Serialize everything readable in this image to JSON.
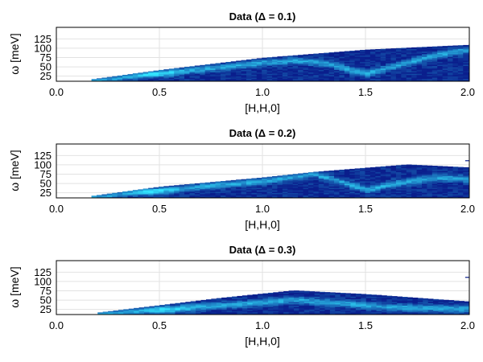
{
  "colors": {
    "background": "#ffffff",
    "grid": "#e2e2e2",
    "colormap_low": "#0a1e8c",
    "colormap_high": "#33e6ff"
  },
  "chart_data": [
    {
      "type": "heatmap",
      "title": "Data (Δ = 0.1)",
      "xlabel": "[H,H,0]",
      "ylabel": "ω [meV]",
      "xlim": [
        0.0,
        2.0
      ],
      "ylim": [
        0,
        145
      ],
      "xticks": [
        "0.0",
        "0.5",
        "1.0",
        "1.5",
        "2.0"
      ],
      "yticks": [
        "25",
        "50",
        "75",
        "100",
        "125"
      ],
      "grid": true,
      "upper_edge": [
        [
          0.17,
          5
        ],
        [
          0.5,
          30
        ],
        [
          1.0,
          63
        ],
        [
          1.5,
          85
        ],
        [
          2.0,
          98
        ]
      ],
      "bright_band": [
        [
          0.2,
          3
        ],
        [
          0.35,
          14
        ],
        [
          0.5,
          22
        ],
        [
          0.65,
          30
        ],
        [
          0.8,
          38
        ],
        [
          1.0,
          50
        ],
        [
          1.15,
          56
        ],
        [
          1.3,
          50
        ],
        [
          1.5,
          20
        ],
        [
          1.7,
          50
        ],
        [
          1.85,
          72
        ],
        [
          2.0,
          85
        ]
      ],
      "max_hotspot": [
        0.5,
        20
      ]
    },
    {
      "type": "heatmap",
      "title": "Data (Δ = 0.2)",
      "xlabel": "[H,H,0]",
      "ylabel": "ω [meV]",
      "xlim": [
        0.0,
        2.0
      ],
      "ylim": [
        0,
        145
      ],
      "xticks": [
        "0.0",
        "0.5",
        "1.0",
        "1.5",
        "2.0"
      ],
      "yticks": [
        "25",
        "50",
        "75",
        "100",
        "125"
      ],
      "grid": true,
      "upper_edge": [
        [
          0.17,
          5
        ],
        [
          0.5,
          30
        ],
        [
          1.0,
          55
        ],
        [
          1.25,
          70
        ],
        [
          1.7,
          90
        ],
        [
          2.0,
          82
        ]
      ],
      "bright_band": [
        [
          0.2,
          3
        ],
        [
          0.35,
          14
        ],
        [
          0.5,
          20
        ],
        [
          0.65,
          28
        ],
        [
          0.8,
          36
        ],
        [
          1.0,
          45
        ],
        [
          1.25,
          65
        ],
        [
          1.4,
          40
        ],
        [
          1.5,
          22
        ],
        [
          1.65,
          40
        ],
        [
          1.85,
          55
        ],
        [
          2.0,
          50
        ]
      ],
      "max_hotspot": [
        0.45,
        18
      ],
      "edge_marker": [
        1.98,
        100
      ]
    },
    {
      "type": "heatmap",
      "title": "Data (Δ = 0.3)",
      "xlabel": "[H,H,0]",
      "ylabel": "ω [meV]",
      "xlim": [
        0.0,
        2.0
      ],
      "ylim": [
        0,
        145
      ],
      "xticks": [
        "0.0",
        "0.5",
        "1.0",
        "1.5",
        "2.0"
      ],
      "yticks": [
        "25",
        "50",
        "75",
        "100",
        "125"
      ],
      "grid": true,
      "upper_edge": [
        [
          0.2,
          5
        ],
        [
          0.5,
          25
        ],
        [
          0.8,
          45
        ],
        [
          1.15,
          65
        ],
        [
          1.5,
          55
        ],
        [
          2.0,
          35
        ]
      ],
      "bright_band": [
        [
          0.25,
          3
        ],
        [
          0.4,
          10
        ],
        [
          0.5,
          14
        ],
        [
          0.7,
          22
        ],
        [
          0.9,
          28
        ],
        [
          1.15,
          40
        ],
        [
          1.4,
          30
        ],
        [
          1.6,
          20
        ],
        [
          1.8,
          18
        ],
        [
          2.0,
          15
        ]
      ],
      "max_hotspot": [
        0.55,
        12
      ],
      "edge_marker": [
        1.98,
        100
      ]
    }
  ]
}
